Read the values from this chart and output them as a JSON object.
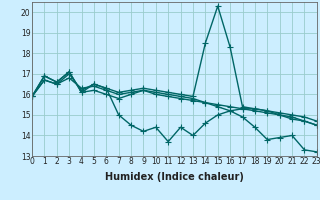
{
  "xlabel": "Humidex (Indice chaleur)",
  "background_color": "#cceeff",
  "grid_color": "#99cccc",
  "line_color": "#006666",
  "xlim": [
    0,
    23
  ],
  "ylim": [
    13,
    20.5
  ],
  "yticks": [
    13,
    14,
    15,
    16,
    17,
    18,
    19,
    20
  ],
  "xticks": [
    0,
    1,
    2,
    3,
    4,
    5,
    6,
    7,
    8,
    9,
    10,
    11,
    12,
    13,
    14,
    15,
    16,
    17,
    18,
    19,
    20,
    21,
    22,
    23
  ],
  "series": [
    [
      15.9,
      16.9,
      16.6,
      17.1,
      16.1,
      16.2,
      16.0,
      15.8,
      16.0,
      16.2,
      16.0,
      15.9,
      15.8,
      15.7,
      15.6,
      15.5,
      15.4,
      15.3,
      15.2,
      15.1,
      15.0,
      14.9,
      14.7,
      14.5
    ],
    [
      15.9,
      16.7,
      16.5,
      16.8,
      16.3,
      16.4,
      16.2,
      16.0,
      16.1,
      16.2,
      16.1,
      16.0,
      15.9,
      15.8,
      15.6,
      15.4,
      15.2,
      15.3,
      15.3,
      15.2,
      15.0,
      14.8,
      14.7,
      14.5
    ],
    [
      15.9,
      16.9,
      16.6,
      17.1,
      16.1,
      16.5,
      16.3,
      15.0,
      14.5,
      14.2,
      14.4,
      13.7,
      14.4,
      14.0,
      14.6,
      15.0,
      15.2,
      14.9,
      14.4,
      13.8,
      13.9,
      14.0,
      13.3,
      13.2
    ],
    [
      15.9,
      16.7,
      16.5,
      17.0,
      16.2,
      16.5,
      16.3,
      16.1,
      16.2,
      16.3,
      16.2,
      16.1,
      16.0,
      15.9,
      18.5,
      20.3,
      18.3,
      15.4,
      15.3,
      15.2,
      15.1,
      15.0,
      14.9,
      14.7
    ]
  ],
  "marker": "+",
  "markersize": 4,
  "linewidth": 1.0,
  "tick_fontsize": 5.5,
  "xlabel_fontsize": 7
}
